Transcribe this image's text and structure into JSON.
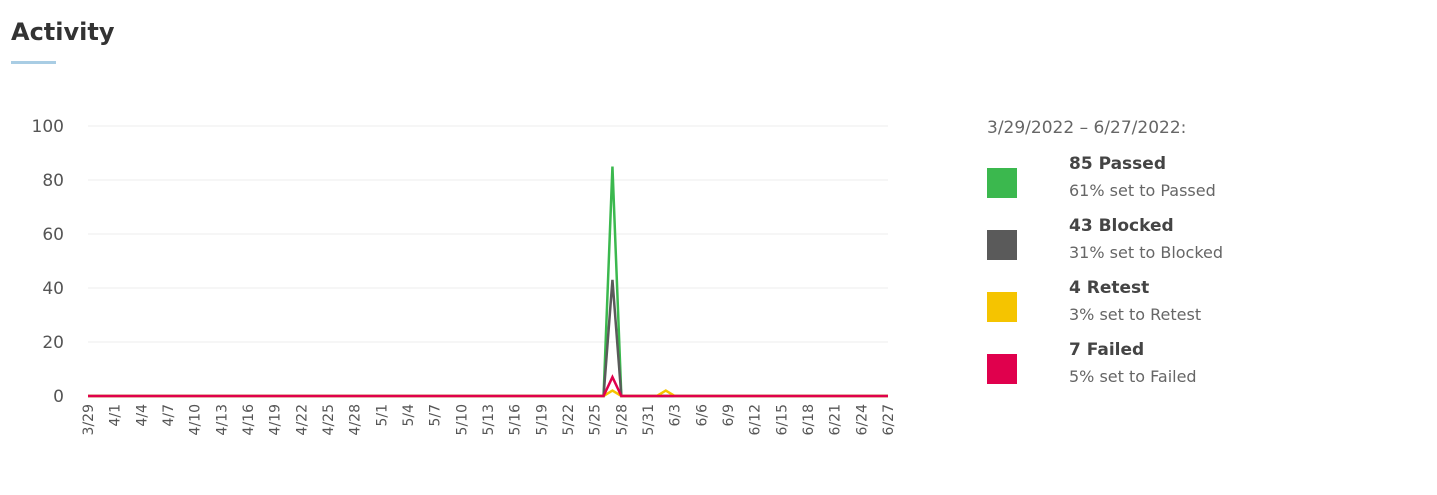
{
  "header": {
    "title": "Activity"
  },
  "legend": {
    "range": "3/29/2022 – 6/27/2022:",
    "items": [
      {
        "main": "85 Passed",
        "sub": "61% set to Passed",
        "color": "#3bb84e",
        "icon": "passed-swatch"
      },
      {
        "main": "43 Blocked",
        "sub": "31% set to Blocked",
        "color": "#5a5a5a",
        "icon": "blocked-swatch"
      },
      {
        "main": "4 Retest",
        "sub": "3% set to Retest",
        "color": "#f5c400",
        "icon": "retest-swatch"
      },
      {
        "main": "7 Failed",
        "sub": "5% set to Failed",
        "color": "#e0004d",
        "icon": "failed-swatch"
      }
    ]
  },
  "chart_data": {
    "type": "line",
    "ylim": [
      0,
      100
    ],
    "yticks": [
      0,
      20,
      40,
      60,
      80,
      100
    ],
    "grid": true,
    "legend_placement": "right",
    "x": [
      "3/29",
      "3/30",
      "3/31",
      "4/1",
      "4/2",
      "4/3",
      "4/4",
      "4/5",
      "4/6",
      "4/7",
      "4/8",
      "4/9",
      "4/10",
      "4/11",
      "4/12",
      "4/13",
      "4/14",
      "4/15",
      "4/16",
      "4/17",
      "4/18",
      "4/19",
      "4/20",
      "4/21",
      "4/22",
      "4/23",
      "4/24",
      "4/25",
      "4/26",
      "4/27",
      "4/28",
      "4/29",
      "4/30",
      "5/1",
      "5/2",
      "5/3",
      "5/4",
      "5/5",
      "5/6",
      "5/7",
      "5/8",
      "5/9",
      "5/10",
      "5/11",
      "5/12",
      "5/13",
      "5/14",
      "5/15",
      "5/16",
      "5/17",
      "5/18",
      "5/19",
      "5/20",
      "5/21",
      "5/22",
      "5/23",
      "5/24",
      "5/25",
      "5/26",
      "5/27",
      "5/28",
      "5/29",
      "5/30",
      "5/31",
      "6/1",
      "6/2",
      "6/3",
      "6/4",
      "6/5",
      "6/6",
      "6/7",
      "6/8",
      "6/9",
      "6/10",
      "6/11",
      "6/12",
      "6/13",
      "6/14",
      "6/15",
      "6/16",
      "6/17",
      "6/18",
      "6/19",
      "6/20",
      "6/21",
      "6/22",
      "6/23",
      "6/24",
      "6/25",
      "6/26",
      "6/27"
    ],
    "xtick_labels": [
      "3/29",
      "4/1",
      "4/4",
      "4/7",
      "4/10",
      "4/13",
      "4/16",
      "4/19",
      "4/22",
      "4/25",
      "4/28",
      "5/1",
      "5/4",
      "5/7",
      "5/10",
      "5/13",
      "5/16",
      "5/19",
      "5/22",
      "5/25",
      "5/28",
      "5/31",
      "6/3",
      "6/6",
      "6/9",
      "6/12",
      "6/15",
      "6/18",
      "6/21",
      "6/24",
      "6/27"
    ],
    "series": [
      {
        "name": "Passed",
        "color": "#3bb84e",
        "points": [
          [
            "5/26",
            0
          ],
          [
            "5/27",
            85
          ],
          [
            "5/28",
            0
          ]
        ]
      },
      {
        "name": "Blocked",
        "color": "#5a5a5a",
        "points": [
          [
            "5/26",
            0
          ],
          [
            "5/27",
            43
          ],
          [
            "5/28",
            0
          ]
        ]
      },
      {
        "name": "Retest",
        "color": "#f5c400",
        "points": [
          [
            "5/26",
            0
          ],
          [
            "5/27",
            2
          ],
          [
            "5/28",
            0
          ],
          [
            "6/1",
            0
          ],
          [
            "6/2",
            2
          ],
          [
            "6/3",
            0
          ]
        ]
      },
      {
        "name": "Failed",
        "color": "#e0004d",
        "points": [
          [
            "5/26",
            0
          ],
          [
            "5/27",
            7
          ],
          [
            "5/28",
            0
          ]
        ]
      }
    ]
  }
}
